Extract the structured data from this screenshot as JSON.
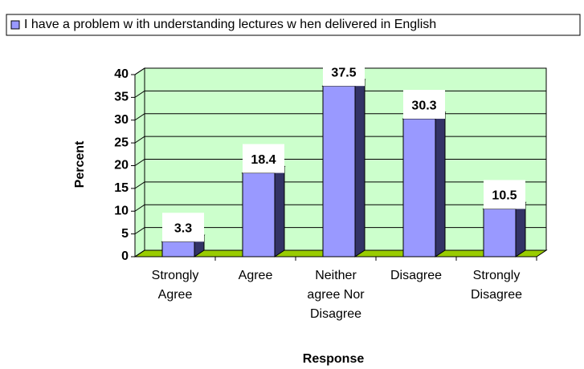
{
  "chart_data": {
    "type": "bar3d",
    "categories": [
      "Strongly Agree",
      "Agree",
      "Neither agree Nor Disagree",
      "Disagree",
      "Strongly Disagree"
    ],
    "series": [
      {
        "name": "I have a problem w ith understanding lectures w hen delivered in English",
        "color": "#9999ff",
        "values": [
          3.3,
          18.4,
          37.5,
          30.3,
          10.5
        ]
      }
    ],
    "ylim": [
      0,
      40
    ],
    "yticks": [
      0,
      5,
      10,
      15,
      20,
      25,
      30,
      35,
      40
    ],
    "ylabel": "Percent",
    "xlabel": "Response",
    "grid": true,
    "legend": "top"
  }
}
